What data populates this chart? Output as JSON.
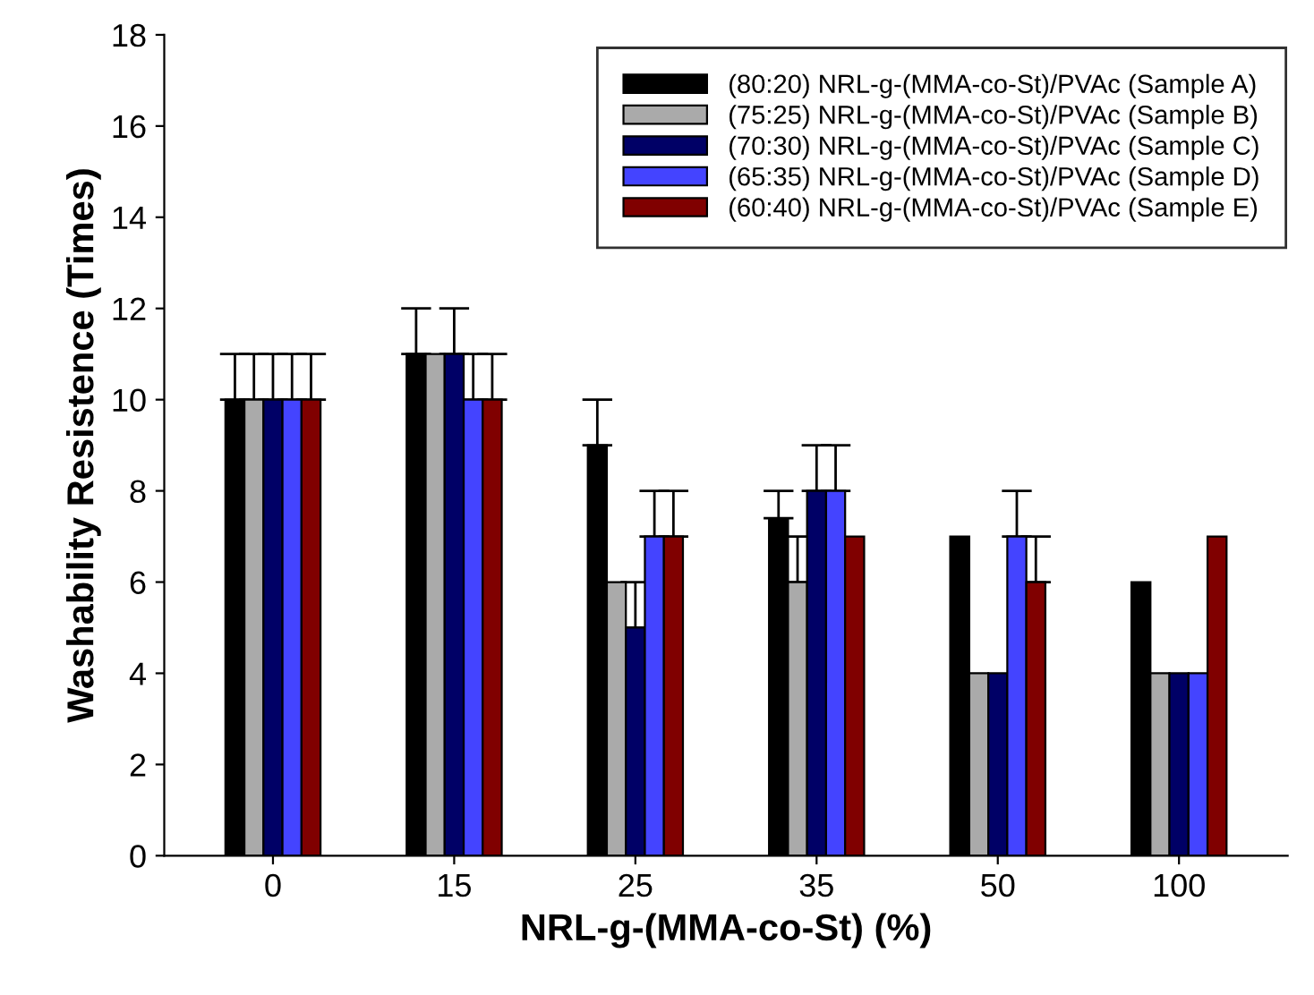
{
  "chart_data": {
    "type": "bar",
    "xlabel": "NRL-g-(MMA-co-St) (%)",
    "ylabel": "Washability Resistence (Times)",
    "categories": [
      "0",
      "15",
      "25",
      "35",
      "50",
      "100"
    ],
    "series": [
      {
        "name": "(80:20) NRL-g-(MMA-co-St)/PVAc (Sample A)",
        "color": "#000000",
        "values": [
          10,
          11,
          9,
          7.4,
          7,
          6
        ],
        "errors": [
          [
            10,
            11
          ],
          [
            11,
            12
          ],
          [
            9,
            10
          ],
          [
            7.4,
            8
          ],
          null,
          null
        ]
      },
      {
        "name": "(75:25) NRL-g-(MMA-co-St)/PVAc (Sample B)",
        "color": "#aaaaaa",
        "values": [
          10,
          11,
          6,
          6,
          4,
          4
        ],
        "errors": [
          [
            10,
            11
          ],
          null,
          null,
          [
            6,
            7
          ],
          null,
          null
        ]
      },
      {
        "name": "(70:30) NRL-g-(MMA-co-St)/PVAc (Sample C)",
        "color": "#000066",
        "values": [
          10,
          11,
          5,
          8,
          4,
          4
        ],
        "errors": [
          [
            10,
            11
          ],
          [
            11,
            12
          ],
          [
            5,
            6
          ],
          [
            8,
            9
          ],
          null,
          null
        ]
      },
      {
        "name": "(65:35) NRL-g-(MMA-co-St)/PVAc (Sample D)",
        "color": "#4444ff",
        "values": [
          10,
          10,
          7,
          8,
          7,
          4
        ],
        "errors": [
          [
            10,
            11
          ],
          [
            10,
            11
          ],
          [
            7,
            8
          ],
          [
            8,
            9
          ],
          [
            7,
            8
          ],
          null
        ]
      },
      {
        "name": "(60:40) NRL-g-(MMA-co-St)/PVAc (Sample E)",
        "color": "#800000",
        "values": [
          10,
          10,
          7,
          7,
          6,
          7
        ],
        "errors": [
          [
            10,
            11
          ],
          [
            10,
            11
          ],
          [
            7,
            8
          ],
          null,
          [
            6,
            7
          ],
          null
        ]
      }
    ],
    "ylim": [
      0,
      18
    ],
    "yticks": [
      0,
      2,
      4,
      6,
      8,
      10,
      12,
      14,
      16,
      18
    ],
    "grid": false,
    "legend": "top right"
  }
}
